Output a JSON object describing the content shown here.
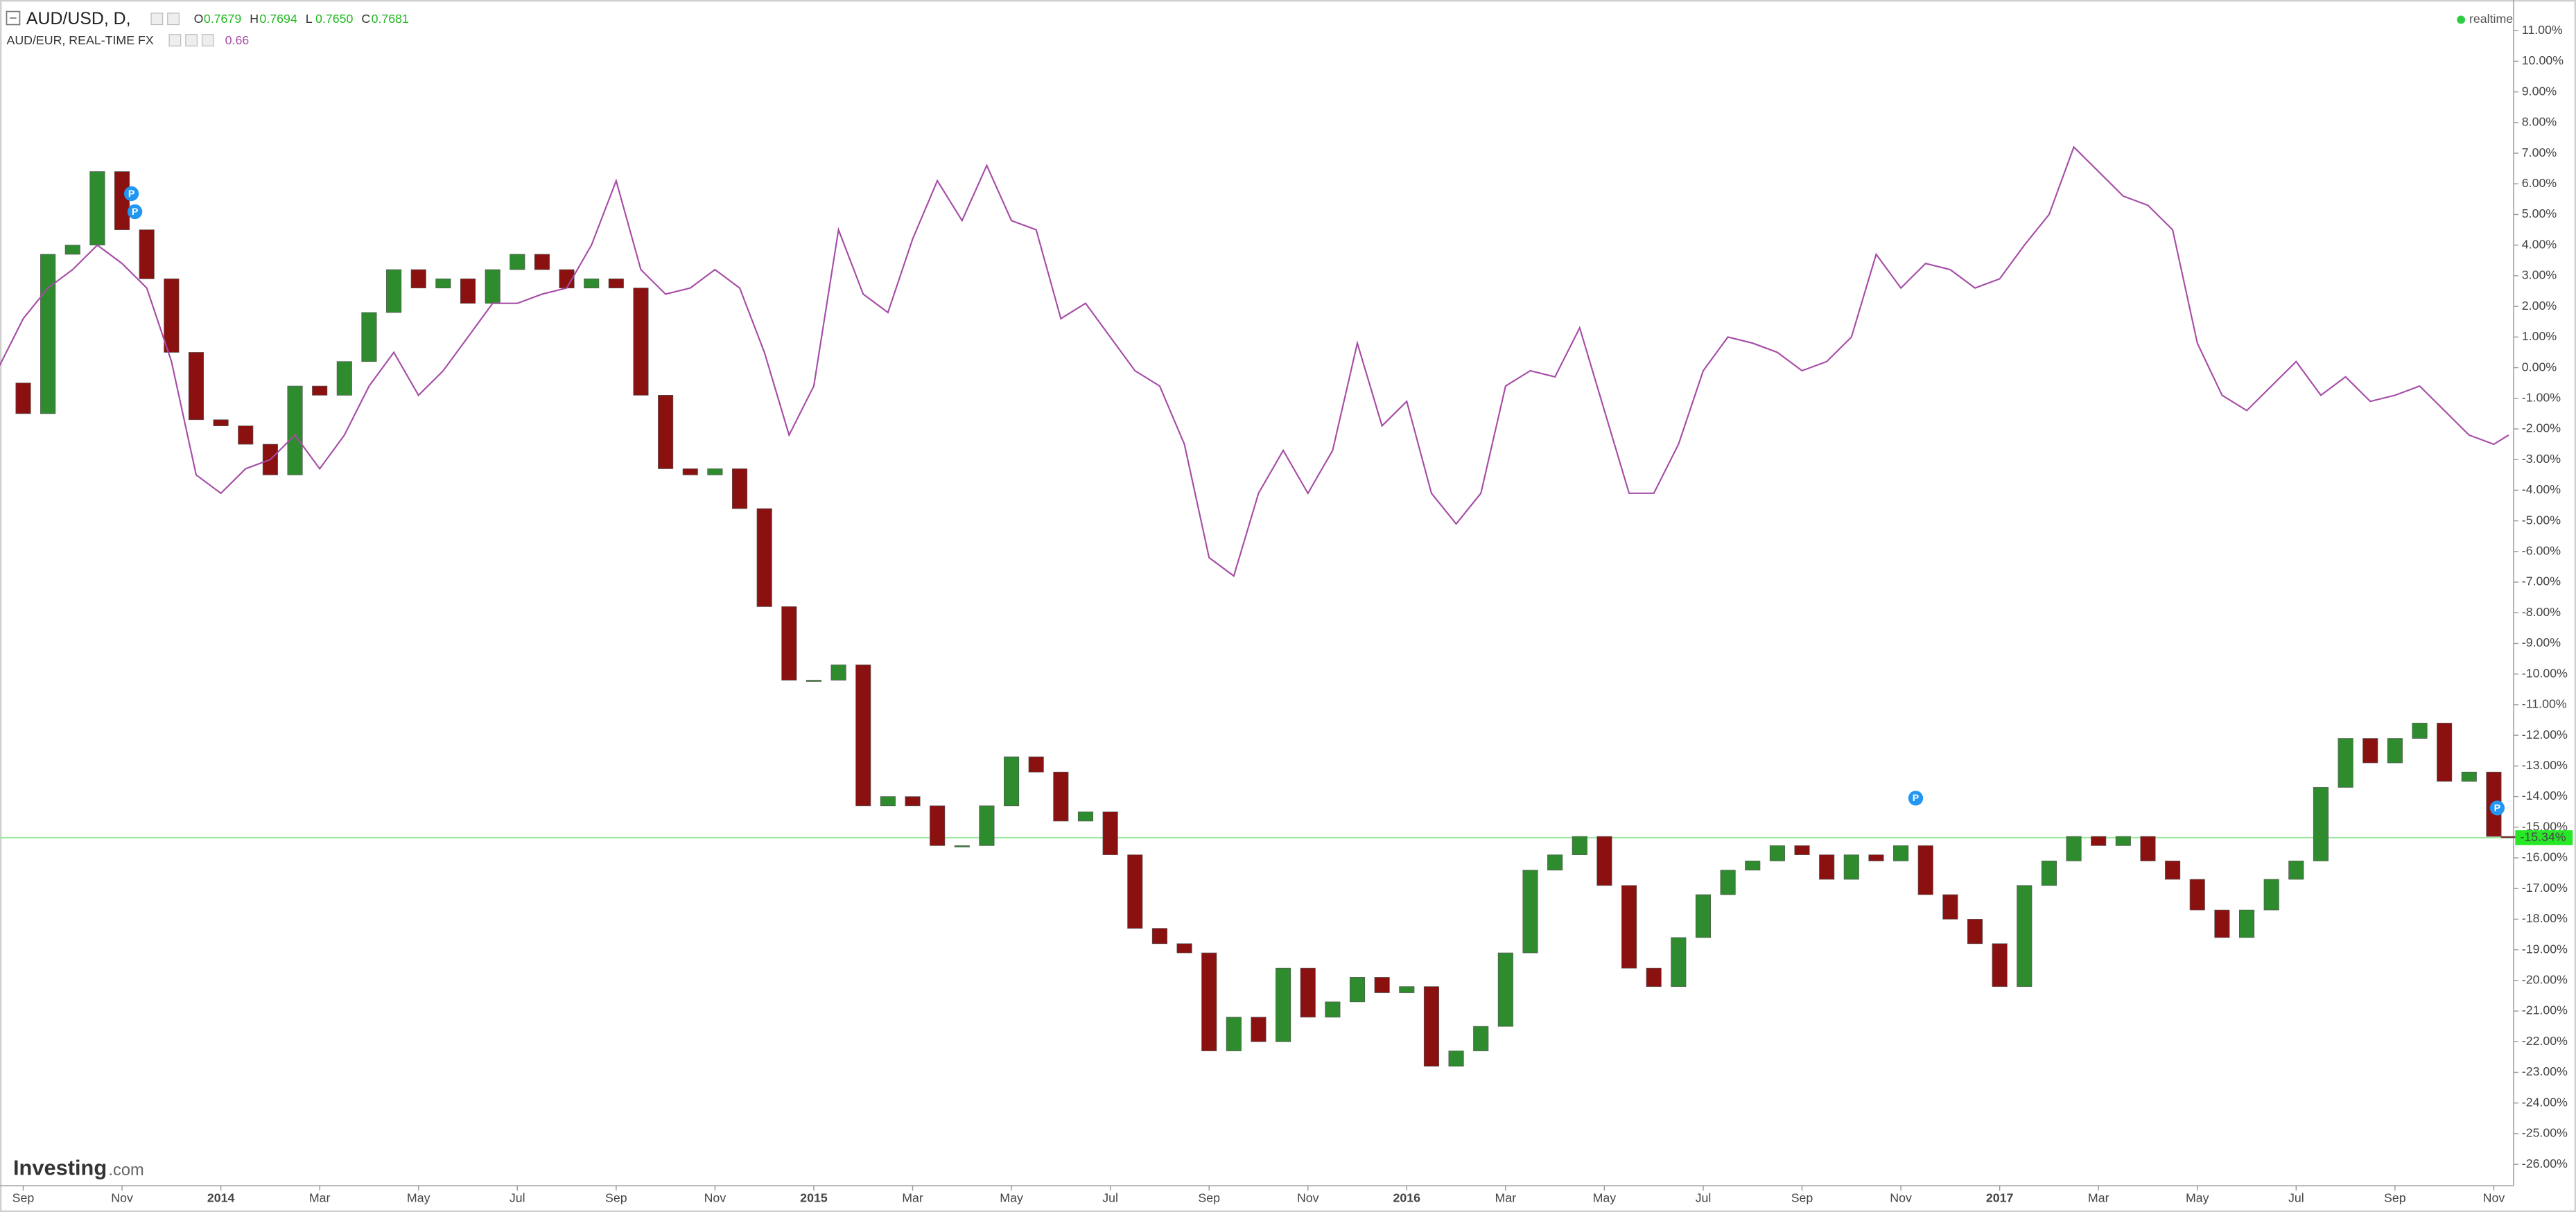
{
  "chart_data": {
    "type": "candlestick",
    "header": {
      "ohlc": [
        {
          "key": "O",
          "value": "0.7679"
        },
        {
          "key": "H",
          "value": "0.7694"
        },
        {
          "key": "L",
          "value": "0.7650"
        },
        {
          "key": "C",
          "value": "0.7681"
        }
      ],
      "status": "realtime"
    },
    "logo": {
      "brand": "Investing",
      "suffix": ".com"
    },
    "x": [
      -0.5,
      0,
      0.5,
      1,
      1.5,
      2,
      2.5,
      3,
      3.5,
      4,
      4.5,
      5,
      5.5,
      6,
      6.5,
      7,
      7.5,
      8,
      8.5,
      9,
      9.5,
      10,
      10.5,
      11,
      11.5,
      12,
      12.5,
      13,
      13.5,
      14,
      14.5,
      15,
      15.5,
      16,
      16.5,
      17,
      17.5,
      18,
      18.5,
      19,
      19.5,
      20,
      20.5,
      21,
      21.5,
      22,
      22.5,
      23,
      23.5,
      24,
      24.5,
      25,
      25.5,
      26,
      26.5,
      27,
      27.5,
      28,
      28.5,
      29,
      29.5,
      30,
      30.5,
      31,
      31.5,
      32,
      32.5,
      33,
      33.5,
      34,
      34.5,
      35,
      35.5,
      36,
      36.5,
      37,
      37.5,
      38,
      38.5,
      39,
      39.5,
      40,
      40.5,
      41,
      41.5,
      42,
      42.5,
      43,
      43.5,
      44,
      44.5,
      45,
      45.5,
      46,
      46.5,
      47,
      47.5,
      48,
      48.5,
      49,
      49.5,
      50,
      50.3
    ],
    "series": [
      {
        "name": "AUD/USD, D,",
        "color_up": "#2e8b2e",
        "color_down": "#8b1010",
        "values": [
          -0.5,
          -1.5,
          3.7,
          4,
          6.4,
          4.5,
          2.9,
          0.5,
          -1.7,
          -1.9,
          -2.5,
          -3.5,
          -0.6,
          -0.9,
          0.2,
          1.8,
          3.2,
          2.6,
          2.9,
          2.1,
          3.2,
          3.7,
          3.2,
          2.6,
          2.9,
          2.6,
          -0.9,
          -3.3,
          -3.5,
          -3.3,
          -4.6,
          -7.8,
          -10.2,
          -10.2,
          -9.7,
          -14.3,
          -14,
          -14.3,
          -15.6,
          -15.6,
          -14.3,
          -12.7,
          -13.2,
          -14.8,
          -14.5,
          -15.9,
          -18.3,
          -18.8,
          -19.1,
          -22.3,
          -21.2,
          -22,
          -19.6,
          -21.2,
          -20.7,
          -19.9,
          -20.4,
          -20.2,
          -22.8,
          -22.3,
          -21.5,
          -19.1,
          -16.4,
          -15.9,
          -15.3,
          -16.9,
          -19.6,
          -20.2,
          -18.6,
          -17.2,
          -16.4,
          -16.1,
          -15.6,
          -15.9,
          -16.7,
          -15.9,
          -16.1,
          -15.6,
          -17.2,
          -18,
          -18.8,
          -20.2,
          -16.9,
          -16.1,
          -15.3,
          -15.6,
          -15.3,
          -16.1,
          -16.7,
          -17.7,
          -18.6,
          -17.7,
          -16.7,
          -16.1,
          -13.7,
          -12.1,
          -12.9,
          -12.1,
          -11.6,
          -13.5,
          -13.2,
          -15.3,
          -15.34
        ],
        "last_label": {
          "value": -15.34,
          "label": "-15.34%"
        },
        "last_color": "#27e827"
      },
      {
        "name": "AUD/EUR, REAL-TIME FX",
        "color": "#a64ca6",
        "last_label": "0.66",
        "values": [
          0,
          1.6,
          2.6,
          3.2,
          4,
          3.4,
          2.6,
          0.2,
          -3.5,
          -4.1,
          -3.3,
          -3,
          -2.2,
          -3.3,
          -2.2,
          -0.6,
          0.5,
          -0.9,
          -0.1,
          1,
          2.1,
          2.1,
          2.4,
          2.6,
          4,
          6.1,
          3.2,
          2.4,
          2.6,
          3.2,
          2.6,
          0.5,
          -2.2,
          -0.6,
          4.5,
          2.4,
          1.8,
          4.2,
          6.1,
          4.8,
          6.6,
          4.8,
          4.5,
          1.6,
          2.1,
          1,
          -0.1,
          -0.6,
          -2.5,
          -6.2,
          -6.8,
          -4.1,
          -2.7,
          -4.1,
          -2.7,
          0.8,
          -1.9,
          -1.1,
          -4.1,
          -5.1,
          -4.1,
          -0.6,
          -0.1,
          -0.3,
          1.3,
          -1.4,
          -4.1,
          -4.1,
          -2.5,
          -0.1,
          1,
          0.8,
          0.5,
          -0.1,
          0.2,
          1,
          3.7,
          2.6,
          3.4,
          3.2,
          2.6,
          2.9,
          4,
          5,
          7.2,
          6.4,
          5.6,
          5.3,
          4.5,
          0.8,
          -0.9,
          -1.4,
          -0.6,
          0.2,
          -0.9,
          -0.3,
          -1.1,
          -0.9,
          -0.6,
          -1.4,
          -2.2,
          -2.5,
          -2.2
        ]
      }
    ],
    "events": [
      {
        "x": 2.19,
        "y": 5.68,
        "label": "P"
      },
      {
        "x": 2.26,
        "y": 5.09,
        "label": "P"
      },
      {
        "x": 38.3,
        "y": -14.05,
        "label": "P"
      },
      {
        "x": 50.07,
        "y": -14.37,
        "label": "P"
      }
    ],
    "event_color": "#2196f3",
    "xlim": [
      -0.47,
      50.4
    ],
    "xticks": [
      {
        "value": 0,
        "label": "Sep"
      },
      {
        "value": 2,
        "label": "Nov"
      },
      {
        "value": 4,
        "label": "2014"
      },
      {
        "value": 6,
        "label": "Mar"
      },
      {
        "value": 8,
        "label": "May"
      },
      {
        "value": 10,
        "label": "Jul"
      },
      {
        "value": 12,
        "label": "Sep"
      },
      {
        "value": 14,
        "label": "Nov"
      },
      {
        "value": 16,
        "label": "2015"
      },
      {
        "value": 18,
        "label": "Mar"
      },
      {
        "value": 20,
        "label": "May"
      },
      {
        "value": 22,
        "label": "Jul"
      },
      {
        "value": 24,
        "label": "Sep"
      },
      {
        "value": 26,
        "label": "Nov"
      },
      {
        "value": 28,
        "label": "2016"
      },
      {
        "value": 30,
        "label": "Mar"
      },
      {
        "value": 32,
        "label": "May"
      },
      {
        "value": 34,
        "label": "Jul"
      },
      {
        "value": 36,
        "label": "Sep"
      },
      {
        "value": 38,
        "label": "Nov"
      },
      {
        "value": 40,
        "label": "2017"
      },
      {
        "value": 42,
        "label": "Mar"
      },
      {
        "value": 44,
        "label": "May"
      },
      {
        "value": 46,
        "label": "Jul"
      },
      {
        "value": 48,
        "label": "Sep"
      },
      {
        "value": 50,
        "label": "Nov"
      }
    ],
    "ylim": [
      -26.7,
      12.0
    ],
    "yticks": [
      {
        "value": 11,
        "label": "11.00%"
      },
      {
        "value": 10,
        "label": "10.00%"
      },
      {
        "value": 9,
        "label": "9.00%"
      },
      {
        "value": 8,
        "label": "8.00%"
      },
      {
        "value": 7,
        "label": "7.00%"
      },
      {
        "value": 6,
        "label": "6.00%"
      },
      {
        "value": 5,
        "label": "5.00%"
      },
      {
        "value": 4,
        "label": "4.00%"
      },
      {
        "value": 3,
        "label": "3.00%"
      },
      {
        "value": 2,
        "label": "2.00%"
      },
      {
        "value": 1,
        "label": "1.00%"
      },
      {
        "value": 0,
        "label": "0.00%"
      },
      {
        "value": -1,
        "label": "-1.00%"
      },
      {
        "value": -2,
        "label": "-2.00%"
      },
      {
        "value": -3,
        "label": "-3.00%"
      },
      {
        "value": -4,
        "label": "-4.00%"
      },
      {
        "value": -5,
        "label": "-5.00%"
      },
      {
        "value": -6,
        "label": "-6.00%"
      },
      {
        "value": -7,
        "label": "-7.00%"
      },
      {
        "value": -8,
        "label": "-8.00%"
      },
      {
        "value": -9,
        "label": "-9.00%"
      },
      {
        "value": -10,
        "label": "-10.00%"
      },
      {
        "value": -11,
        "label": "-11.00%"
      },
      {
        "value": -12,
        "label": "-12.00%"
      },
      {
        "value": -13,
        "label": "-13.00%"
      },
      {
        "value": -14,
        "label": "-14.00%"
      },
      {
        "value": -15,
        "label": "-15.00%"
      },
      {
        "value": -16,
        "label": "-16.00%"
      },
      {
        "value": -17,
        "label": "-17.00%"
      },
      {
        "value": -18,
        "label": "-18.00%"
      },
      {
        "value": -19,
        "label": "-19.00%"
      },
      {
        "value": -20,
        "label": "-20.00%"
      },
      {
        "value": -21,
        "label": "-21.00%"
      },
      {
        "value": -22,
        "label": "-22.00%"
      },
      {
        "value": -23,
        "label": "-23.00%"
      },
      {
        "value": -24,
        "label": "-24.00%"
      },
      {
        "value": -25,
        "label": "-25.00%"
      },
      {
        "value": -26,
        "label": "-26.00%"
      }
    ],
    "grid": false
  }
}
